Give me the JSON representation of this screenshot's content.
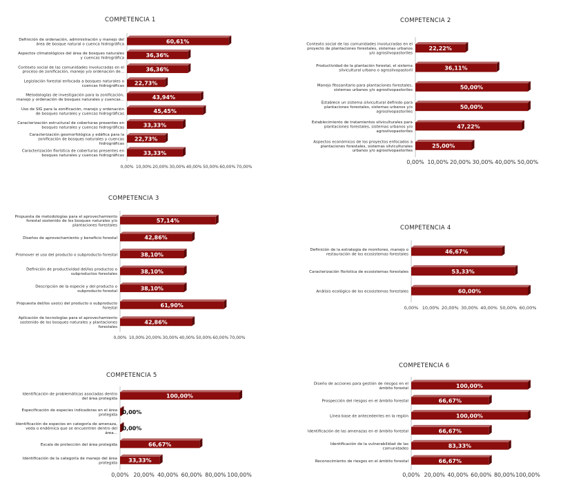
{
  "chart_data": [
    {
      "type": "bar",
      "orientation": "horizontal",
      "title": "COMPETENCIA  1",
      "categories": [
        "Definición de ordenación, administración y manejo del área de bosque natural o cuenca hidrográfica",
        "Aspectos climatológicos del área de bosques naturales y cuencas hidrográfica",
        "Contexto social de las comunidades involucradas en el proceso de zonificación, manejo y/o ordenación de...",
        "Legislación forestal enfocada a bosques naturales o cuencas hidrográficas",
        "Metodologías de investigación para la zonificación, manejo y ordenación de bosques naturales y cuencas...",
        "Uso de SIG para la zonificación, manejo y ordenación de bosques naturales y cuencas hidrográficas",
        "Caracterización estructural de coberturas presentes en bosques naturales y cuencas hidrográficas",
        "Caracterización geomorfológica y edáfica para la zonificación de bosques naturales y cuencas hidrográficas",
        "Caracterización florística de coberturas presentes en bosques naturales y cuencas hidrográficas"
      ],
      "values": [
        60.61,
        36.36,
        36.36,
        22.73,
        43.94,
        45.45,
        33.33,
        22.73,
        33.33
      ],
      "data_labels": [
        "60,61%",
        "36,36%",
        "36,36%",
        "22,73%",
        "43,94%",
        "45,45%",
        "33,33%",
        "22,73%",
        "33,33%"
      ],
      "ticks": [
        "0,00%",
        "10,00%",
        "20,00%",
        "30,00%",
        "40,00%",
        "50,00%",
        "60,00%",
        "70,00%"
      ],
      "xlim": [
        0,
        70
      ],
      "bar_color": "#8b0d0d",
      "grid": false,
      "legend": "none"
    },
    {
      "type": "bar",
      "orientation": "horizontal",
      "title": "COMPETENCIA  2",
      "categories": [
        "Contexto social de las comunidades involucradas en el proyecto de plantaciones forestales, sistemas urbanos y/o agrosilvopastoriles",
        "Productividad de la plantación forestal, el sistema silvicultural urbano o agrosilvopastoril",
        "Manejo fitosanitario para plantaciones forestales, sistemas urbanos y/o agrosilvopastoriles",
        "Establece un sistema silvicultural definido para plantaciones forestales, sistemas urbanos y/o agrosilvopastoriles",
        "Establecimiento de tratamientos silviculturales para plantaciones forestales, sistemas urbanos y/o agrosilvopastoriles",
        "Aspectos económicos de los proyectos enfocados a plantaciones forestales, sistemas silviculturales urbanos y/o agrosilvopastoriles"
      ],
      "values": [
        22.22,
        36.11,
        50.0,
        50.0,
        47.22,
        25.0
      ],
      "data_labels": [
        "22,22%",
        "36,11%",
        "50,00%",
        "50,00%",
        "47,22%",
        "25,00%"
      ],
      "ticks": [
        "0,00%",
        "10,00%",
        "20,00%",
        "30,00%",
        "40,00%",
        "50,00%"
      ],
      "xlim": [
        0,
        50
      ],
      "bar_color": "#8b0d0d",
      "grid": false,
      "legend": "none"
    },
    {
      "type": "bar",
      "orientation": "horizontal",
      "title": "COMPETENCIA  3",
      "categories": [
        "Propuesta de metodologías para el aprovechamiento forestal sostenido de los bosques naturales y/o plantaciones forestales",
        "Diseños de aprovechamiento y beneficio forestal",
        "Promover el uso del producto o subproducto forestal",
        "Definición de productividad del/los productos o subproductos forestales",
        "Descripción de la especie y del producto o subproducto forestal",
        "Propuesta del/los uso(s) del producto o subproducto forestal",
        "Aplicación de tecnologías para el aprovechamiento sostenido de los bosques naturales y plantaciones forestales"
      ],
      "values": [
        57.14,
        42.86,
        38.1,
        38.1,
        38.1,
        61.9,
        42.86
      ],
      "data_labels": [
        "57,14%",
        "42,86%",
        "38,10%",
        "38,10%",
        "38,10%",
        "61,90%",
        "42,86%"
      ],
      "ticks": [
        "0,00%",
        "10,00%",
        "20,00%",
        "30,00%",
        "40,00%",
        "50,00%",
        "60,00%",
        "70,00%"
      ],
      "xlim": [
        0,
        70
      ],
      "bar_color": "#8b0d0d",
      "grid": false,
      "legend": "none"
    },
    {
      "type": "bar",
      "orientation": "horizontal",
      "title": "COMPETENCIA  4",
      "categories": [
        "Definición de la estrategia de monitoreo, manejo o restauración de los ecosistemas forestales",
        "Caracterización florística de ecosistemas forestales",
        "Análisis ecológico de los ecosistemas forestales"
      ],
      "values": [
        46.67,
        53.33,
        60.0
      ],
      "data_labels": [
        "46,67%",
        "53,33%",
        "60,00%"
      ],
      "ticks": [
        "0,00%",
        "10,00%",
        "20,00%",
        "30,00%",
        "40,00%",
        "50,00%",
        "60,00%"
      ],
      "xlim": [
        0,
        60
      ],
      "bar_color": "#8b0d0d",
      "grid": false,
      "legend": "none"
    },
    {
      "type": "bar",
      "orientation": "horizontal",
      "title": "COMPETENCIA  5",
      "categories": [
        "Identificación de problemáticas asociadas dentro del área protegida",
        "Especificación de especies indicadoras en el área protegida",
        "Identificación de especies en categoría de amenaza, veda o endémica que se encuentren dentro del área...",
        "Escala de protección del área protegida",
        "Identificación de la categoría de manejo del área protegida"
      ],
      "values": [
        100.0,
        0.0,
        0.0,
        66.67,
        33.33
      ],
      "data_labels": [
        "100,00%",
        "0,00%",
        "0,00%",
        "66,67%",
        "33,33%"
      ],
      "ticks": [
        "0,00%",
        "20,00%",
        "40,00%",
        "60,00%",
        "80,00%",
        "100,00%"
      ],
      "xlim": [
        0,
        100
      ],
      "bar_color": "#8b0d0d",
      "grid": false,
      "legend": "none"
    },
    {
      "type": "bar",
      "orientation": "horizontal",
      "title": "COMPETENCIA  6",
      "categories": [
        "Diseño de acciones para gestión de riesgos en el ámbito forestal",
        "Prospección del riesgos en el ámbito forestal",
        "Línea base de antecedentes en la región",
        "Identificación de las amenazas en el ámbito forestal",
        "Identificación de la vulnerabilidad de las comunidades",
        "Reconocimiento de riesgos en el ámbito forestal"
      ],
      "values": [
        100.0,
        66.67,
        100.0,
        66.67,
        83.33,
        66.67
      ],
      "data_labels": [
        "100,00%",
        "66,67%",
        "100,00%",
        "66,67%",
        "83,33%",
        "66,67%"
      ],
      "ticks": [
        "0,00%",
        "20,00%",
        "40,00%",
        "60,00%",
        "80,00%",
        "100,00%"
      ],
      "xlim": [
        0,
        100
      ],
      "bar_color": "#8b0d0d",
      "grid": false,
      "legend": "none"
    }
  ]
}
